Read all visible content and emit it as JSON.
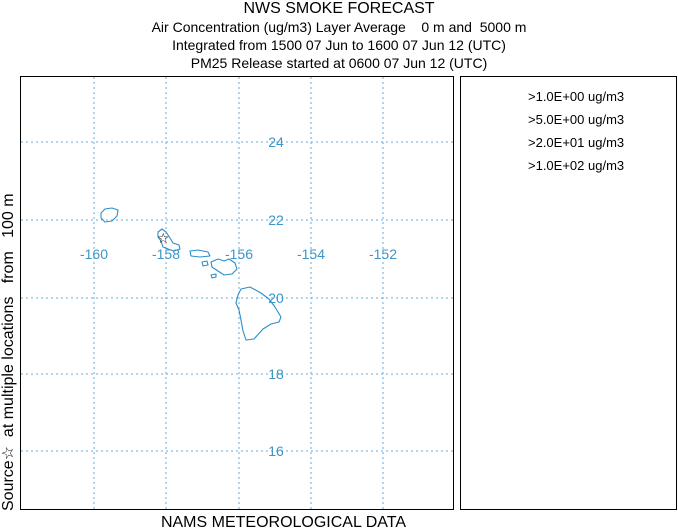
{
  "header": {
    "title": "NWS SMOKE FORECAST",
    "line1": "Air Concentration (ug/m3) Layer Average    0 m and  5000 m",
    "line2": "Integrated from 1500 07 Jun to 1600 07 Jun 12 (UTC)",
    "line3": "PM25 Release started at 0600 07 Jun 12 (UTC)"
  },
  "side_label": "Source☆  at multiple locations   from   100 m",
  "footer_label": "NAMS METEOROLOGICAL DATA",
  "map": {
    "longitude_labels": [
      "-160",
      "-158",
      "-156",
      "-154",
      "-152"
    ],
    "latitude_labels": [
      "24",
      "22",
      "20",
      "18",
      "16"
    ],
    "source_marker": "☆",
    "grid_color": "#6aaad8",
    "coast_color": "#2a8fc9",
    "label_color": "#3d95c8"
  },
  "legend": {
    "items": [
      ">1.0E+00 ug/m3",
      ">5.0E+00 ug/m3",
      ">2.0E+01 ug/m3",
      ">1.0E+02 ug/m3"
    ]
  }
}
